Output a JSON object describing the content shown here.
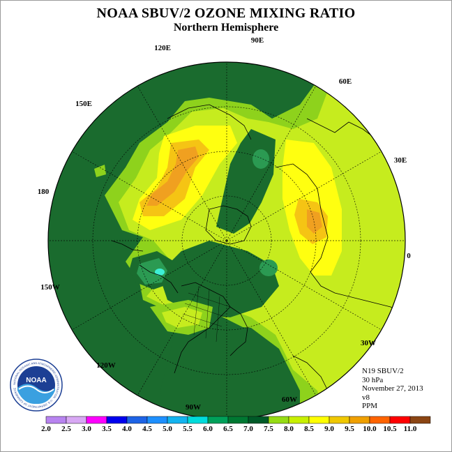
{
  "title": "NOAA SBUV/2 OZONE MIXING RATIO",
  "subtitle": "Northern Hemisphere",
  "longitude_labels": [
    "90E",
    "60E",
    "30E",
    "0",
    "30W",
    "60W",
    "90W",
    "120W",
    "150W",
    "180",
    "150E",
    "120E"
  ],
  "info": {
    "satellite": "N19 SBUV/2",
    "level": "30 hPa",
    "date": "November 27, 2013",
    "version": "v8",
    "units": "PPM"
  },
  "logo": {
    "text": "NOAA",
    "ring_text": "NATIONAL OCEANIC AND ATMOSPHERIC ADMINISTRATION · U.S. DEPARTMENT OF COMMERCE"
  },
  "color_scale": {
    "ticks": [
      "2.0",
      "2.5",
      "3.0",
      "3.5",
      "4.0",
      "4.5",
      "5.0",
      "5.5",
      "6.0",
      "6.5",
      "7.0",
      "7.5",
      "8.0",
      "8.5",
      "9.0",
      "9.5",
      "10.0",
      "10.5",
      "11.0"
    ],
    "colors": [
      "#b884f0",
      "#d8a8f4",
      "#ff00ff",
      "#0000ee",
      "#1e64e6",
      "#1e90ff",
      "#14b4f0",
      "#00dcdc",
      "#00a05a",
      "#007832",
      "#005a28",
      "#96dc14",
      "#c8f000",
      "#ffff00",
      "#f0c800",
      "#f0a000",
      "#ff6400",
      "#ff0000",
      "#8b4513"
    ]
  },
  "map_colors": {
    "ocean_bg": "#1a6b2e",
    "level_6_5": "#1a6b2e",
    "level_7_5": "#8ed21c",
    "level_8_0": "#c6ec1e",
    "level_8_5": "#ffff10",
    "level_9_0": "#f5c414",
    "level_9_5": "#f0a020",
    "level_6_0": "#2b9a52",
    "level_5_5": "#3ef0d6"
  }
}
